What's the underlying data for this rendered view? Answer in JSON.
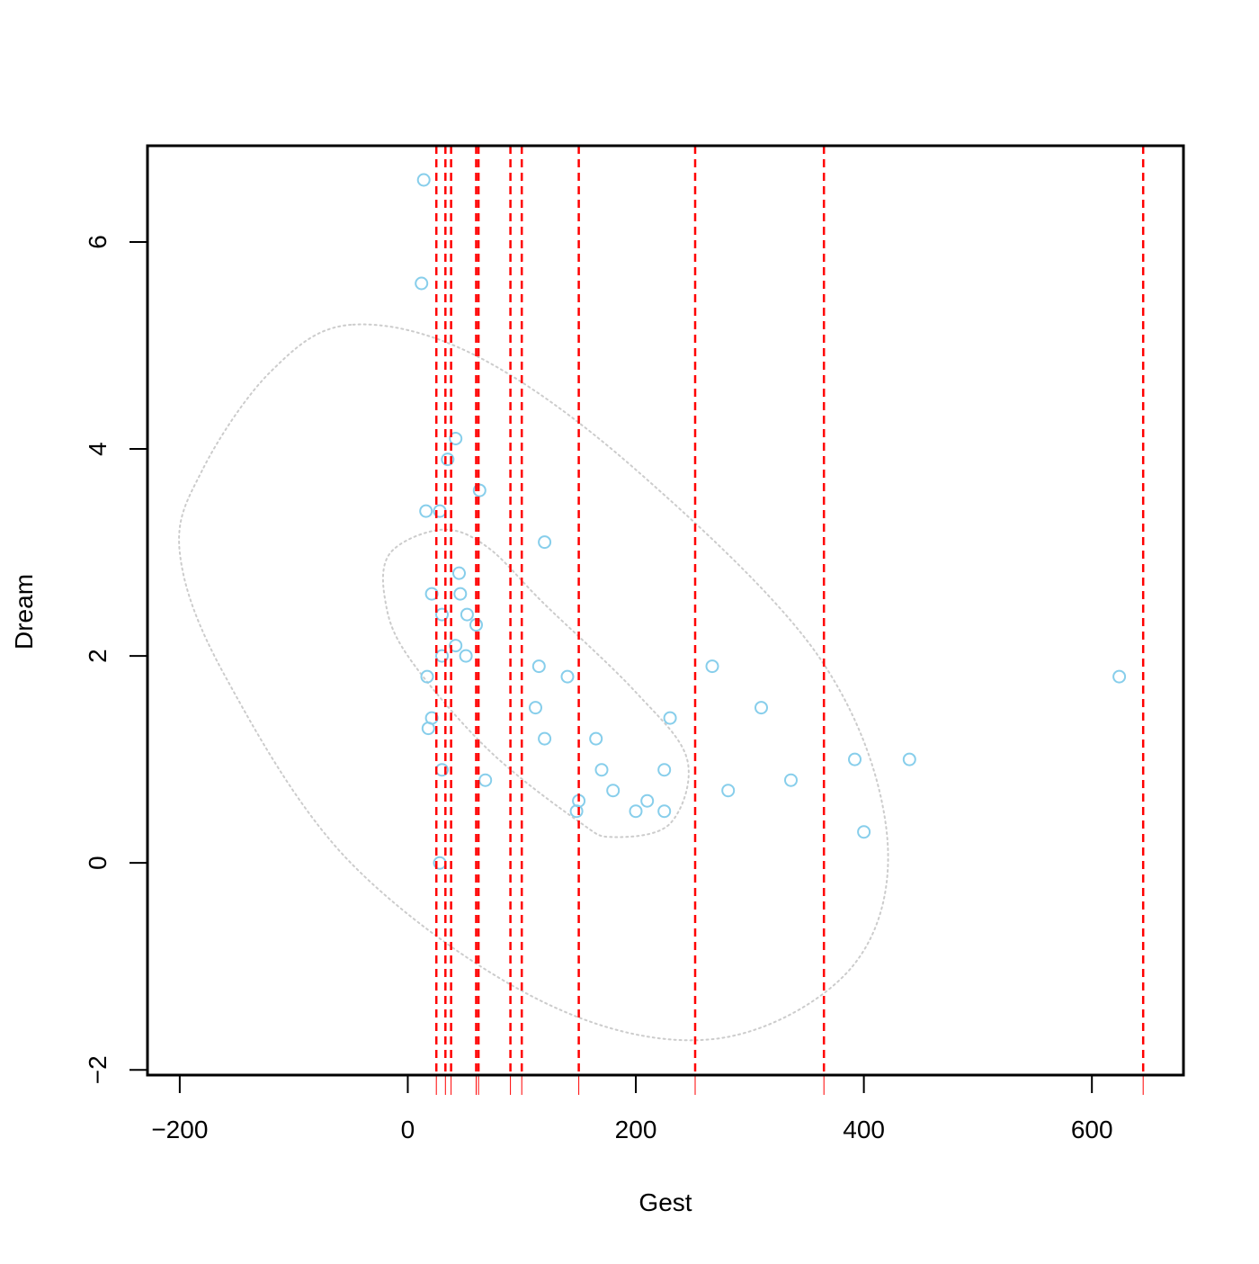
{
  "chart_data": {
    "type": "scatter",
    "title": "",
    "xlabel": "Gest",
    "ylabel": "Dream",
    "xlim": [
      -228.3,
      680.3
    ],
    "ylim": [
      -2.05,
      6.93
    ],
    "grid": false,
    "x_ticks": [
      -200,
      0,
      200,
      400,
      600
    ],
    "x_tick_labels": [
      "−200",
      "0",
      "200",
      "400",
      "600"
    ],
    "y_ticks": [
      -2,
      0,
      2,
      4,
      6
    ],
    "y_tick_labels": [
      "−2",
      "0",
      "2",
      "4",
      "6"
    ],
    "colors": {
      "points": "#87ceeb",
      "vlines": "#ff0000",
      "ellipses": "#cccccc",
      "axes": "#000000"
    },
    "series": [
      {
        "marker": "open-circle",
        "x": [
          14,
          12,
          42,
          35,
          63,
          16,
          28,
          120,
          45,
          46,
          21,
          30,
          52,
          60,
          42,
          30,
          51,
          17,
          21,
          18,
          30,
          28,
          115,
          140,
          112,
          120,
          165,
          170,
          180,
          150,
          148,
          200,
          210,
          225,
          225,
          230,
          267,
          281,
          310,
          336,
          392,
          400,
          440,
          624,
          68
        ],
        "y": [
          6.6,
          5.6,
          4.1,
          3.9,
          3.6,
          3.4,
          3.4,
          3.1,
          2.8,
          2.6,
          2.6,
          2.4,
          2.4,
          2.3,
          2.1,
          2.0,
          2.0,
          1.8,
          1.4,
          1.3,
          0.9,
          0.0,
          1.9,
          1.8,
          1.5,
          1.2,
          1.2,
          0.9,
          0.7,
          0.6,
          0.5,
          0.5,
          0.6,
          0.9,
          0.5,
          1.4,
          1.9,
          0.7,
          1.5,
          0.8,
          1.0,
          0.3,
          1.0,
          1.8,
          0.8
        ]
      }
    ],
    "vlines": {
      "style": "dashed",
      "x": [
        25,
        33,
        38,
        60,
        62,
        90,
        100,
        150,
        252,
        365,
        645
      ]
    },
    "ellipses": [
      {
        "style": "dotted",
        "points": [
          [
            -50,
            5.2
          ],
          [
            -120,
            4.75
          ],
          [
            -180,
            3.8
          ],
          [
            -200,
            3.0
          ],
          [
            -160,
            1.8
          ],
          [
            -50,
            0.0
          ],
          [
            120,
            -1.35
          ],
          [
            270,
            -1.7
          ],
          [
            390,
            -1.0
          ],
          [
            420,
            0.3
          ],
          [
            360,
            2.0
          ],
          [
            200,
            3.8
          ],
          [
            60,
            4.9
          ],
          [
            -50,
            5.2
          ]
        ]
      },
      {
        "style": "dotted",
        "points": [
          [
            30,
            3.22
          ],
          [
            -15,
            3.0
          ],
          [
            -20,
            2.55
          ],
          [
            0,
            2.0
          ],
          [
            70,
            1.1
          ],
          [
            150,
            0.4
          ],
          [
            180,
            0.25
          ],
          [
            230,
            0.38
          ],
          [
            245,
            1.0
          ],
          [
            200,
            1.65
          ],
          [
            120,
            2.5
          ],
          [
            70,
            3.05
          ],
          [
            30,
            3.22
          ]
        ]
      }
    ]
  }
}
